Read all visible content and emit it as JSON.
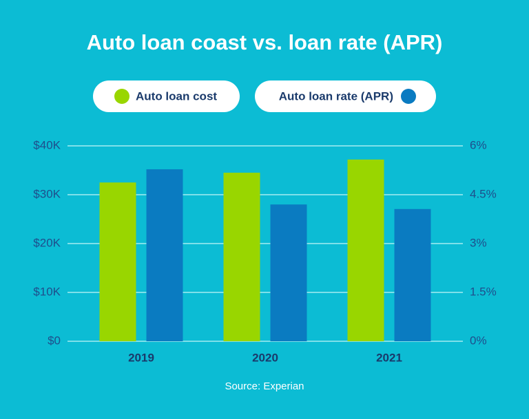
{
  "chart_data": {
    "type": "bar",
    "title": "Auto loan coast vs. loan rate (APR)",
    "categories": [
      "2019",
      "2020",
      "2021"
    ],
    "series": [
      {
        "name": "Auto loan cost",
        "color": "#99d600",
        "values": [
          32500,
          34500,
          37200
        ]
      },
      {
        "name": "Auto loan rate (APR)",
        "color": "#0a7bc1",
        "values": [
          5.28,
          4.2,
          4.06
        ],
        "axis": "y2"
      }
    ],
    "ylim": [
      0,
      40000
    ],
    "yticks": [
      {
        "value": 0,
        "label": "$0"
      },
      {
        "value": 10000,
        "label": "$10K"
      },
      {
        "value": 20000,
        "label": "$20K"
      },
      {
        "value": 30000,
        "label": "$30K"
      },
      {
        "value": 40000,
        "label": "$40K"
      }
    ],
    "y2lim": [
      0,
      6
    ],
    "y2ticks": [
      {
        "value": 0,
        "label": "0%"
      },
      {
        "value": 1.5,
        "label": "1.5%"
      },
      {
        "value": 3,
        "label": "3%"
      },
      {
        "value": 4.5,
        "label": "4.5%"
      },
      {
        "value": 6,
        "label": "6%"
      }
    ],
    "grid": true,
    "source": "Source: Experian"
  }
}
